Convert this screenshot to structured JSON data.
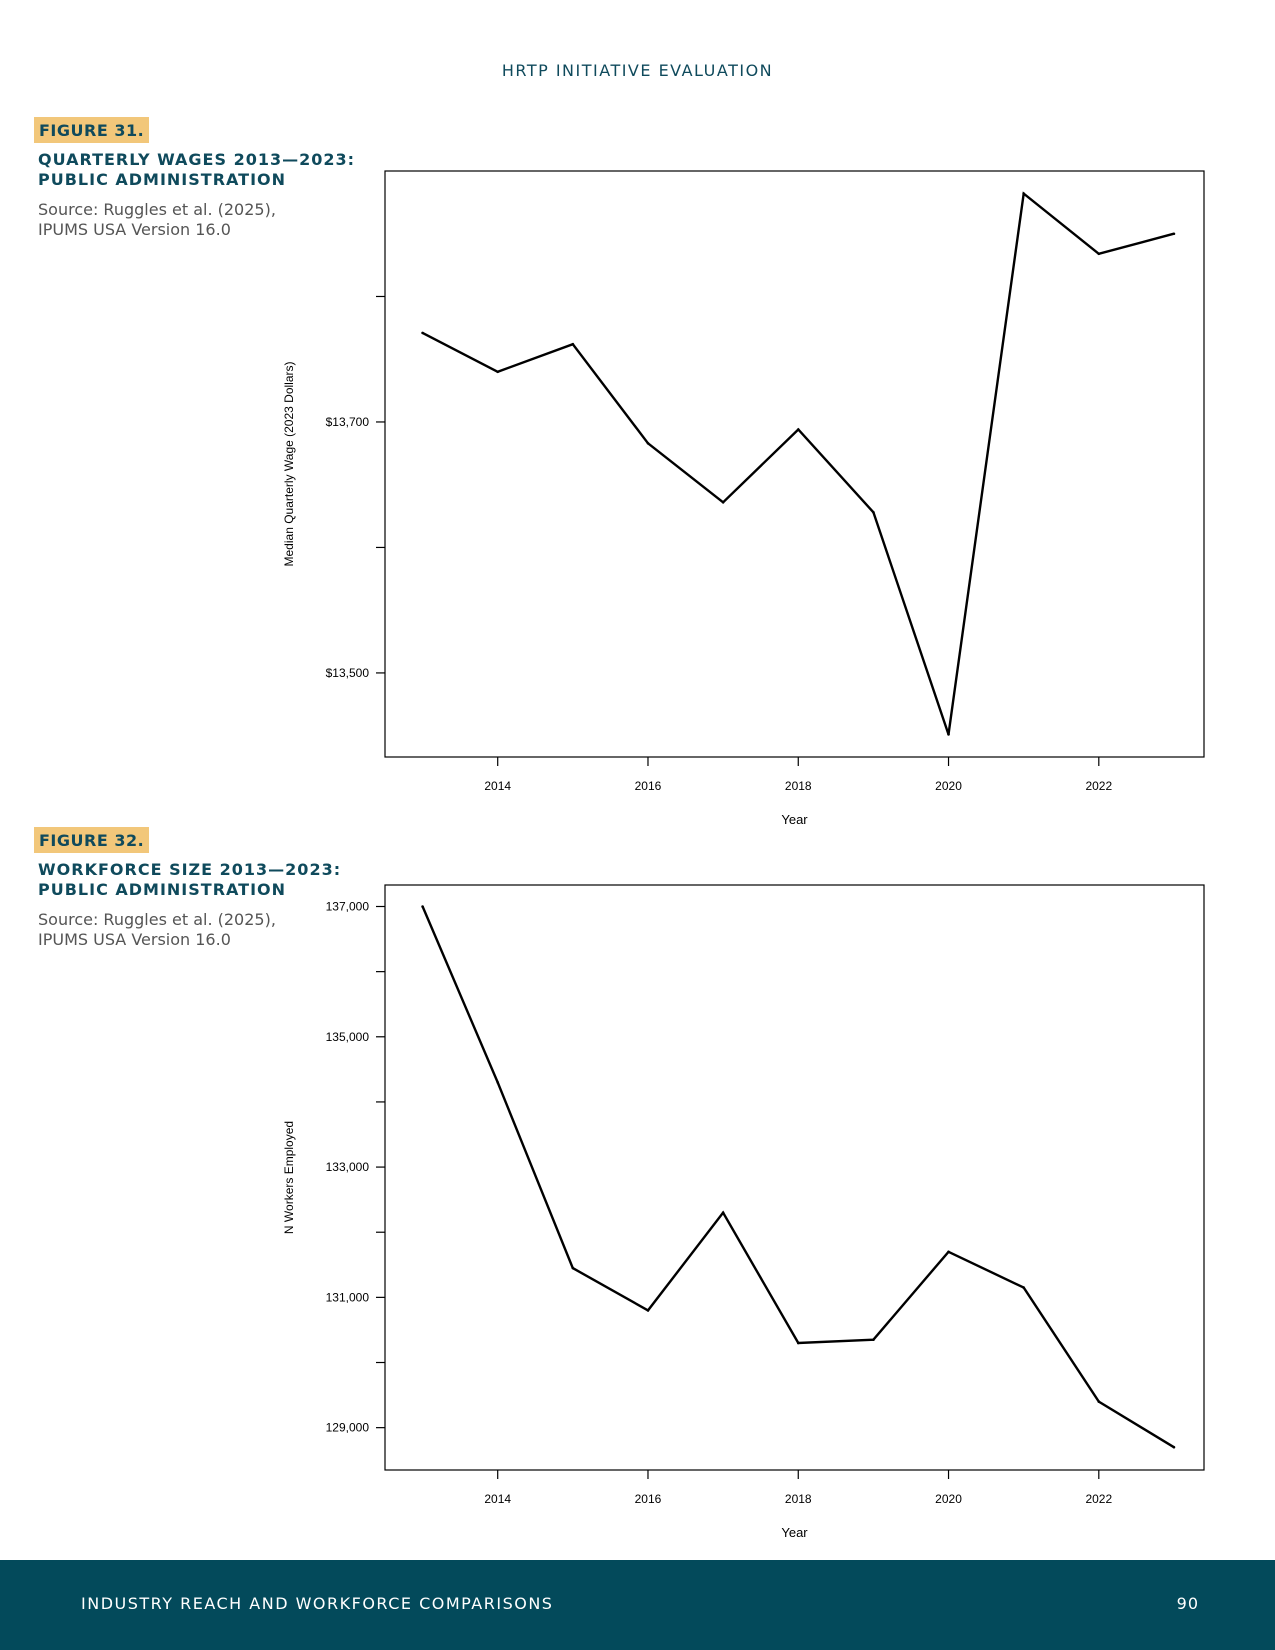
{
  "header": {
    "title": "HRTP INITIATIVE EVALUATION"
  },
  "figures": [
    {
      "tag": "FIGURE 31.",
      "title_lines": [
        "QUARTERLY WAGES 2013—2023:",
        "PUBLIC ADMINISTRATION"
      ],
      "source_lines": [
        "Source: Ruggles et al. (2025),",
        "IPUMS USA Version 16.0"
      ]
    },
    {
      "tag": "FIGURE 32.",
      "title_lines": [
        "WORKFORCE SIZE 2013—2023:",
        "PUBLIC ADMINISTRATION"
      ],
      "source_lines": [
        "Source: Ruggles et al. (2025),",
        "IPUMS USA Version 16.0"
      ]
    }
  ],
  "chart_data": [
    {
      "type": "line",
      "title": "",
      "xlabel": "Year",
      "ylabel": "Median Quarterly Wage (2023 Dollars)",
      "x": [
        2013,
        2014,
        2015,
        2016,
        2017,
        2018,
        2019,
        2020,
        2021,
        2022,
        2023
      ],
      "series": [
        {
          "values": [
            13771,
            13740,
            13762,
            13683,
            13636,
            13694,
            13628,
            13451,
            13882,
            13834,
            13850
          ]
        }
      ],
      "xlim": [
        2012.5,
        2023.4
      ],
      "ylim": [
        13433,
        13900
      ],
      "x_ticks": [
        2014,
        2016,
        2018,
        2020,
        2022
      ],
      "x_tick_labels": [
        "2014",
        "2016",
        "2018",
        "2020",
        "2022"
      ],
      "y_ticks": [
        13500,
        13600,
        13700,
        13800
      ],
      "y_tick_labels": [
        "$13,500",
        "",
        "$13,700",
        ""
      ],
      "grid": false,
      "legend": "none",
      "line_color": "#000000"
    },
    {
      "type": "line",
      "title": "",
      "xlabel": "Year",
      "ylabel": "N Workers Employed",
      "x": [
        2013,
        2014,
        2015,
        2016,
        2017,
        2018,
        2019,
        2020,
        2021,
        2022,
        2023
      ],
      "series": [
        {
          "values": [
            137000,
            134300,
            131450,
            130800,
            132300,
            130300,
            130350,
            131700,
            131150,
            129400,
            128700
          ]
        }
      ],
      "xlim": [
        2012.5,
        2023.4
      ],
      "ylim": [
        128350,
        137330
      ],
      "x_ticks": [
        2014,
        2016,
        2018,
        2020,
        2022
      ],
      "x_tick_labels": [
        "2014",
        "2016",
        "2018",
        "2020",
        "2022"
      ],
      "y_ticks": [
        129000,
        130000,
        131000,
        132000,
        133000,
        134000,
        135000,
        136000,
        137000
      ],
      "y_tick_labels": [
        "129,000",
        "",
        "131,000",
        "",
        "133,000",
        "",
        "135,000",
        "",
        "137,000"
      ],
      "grid": false,
      "legend": "none",
      "line_color": "#000000"
    }
  ],
  "footer": {
    "title": "INDUSTRY REACH AND WORKFORCE COMPARISONS",
    "page_number": "90"
  }
}
